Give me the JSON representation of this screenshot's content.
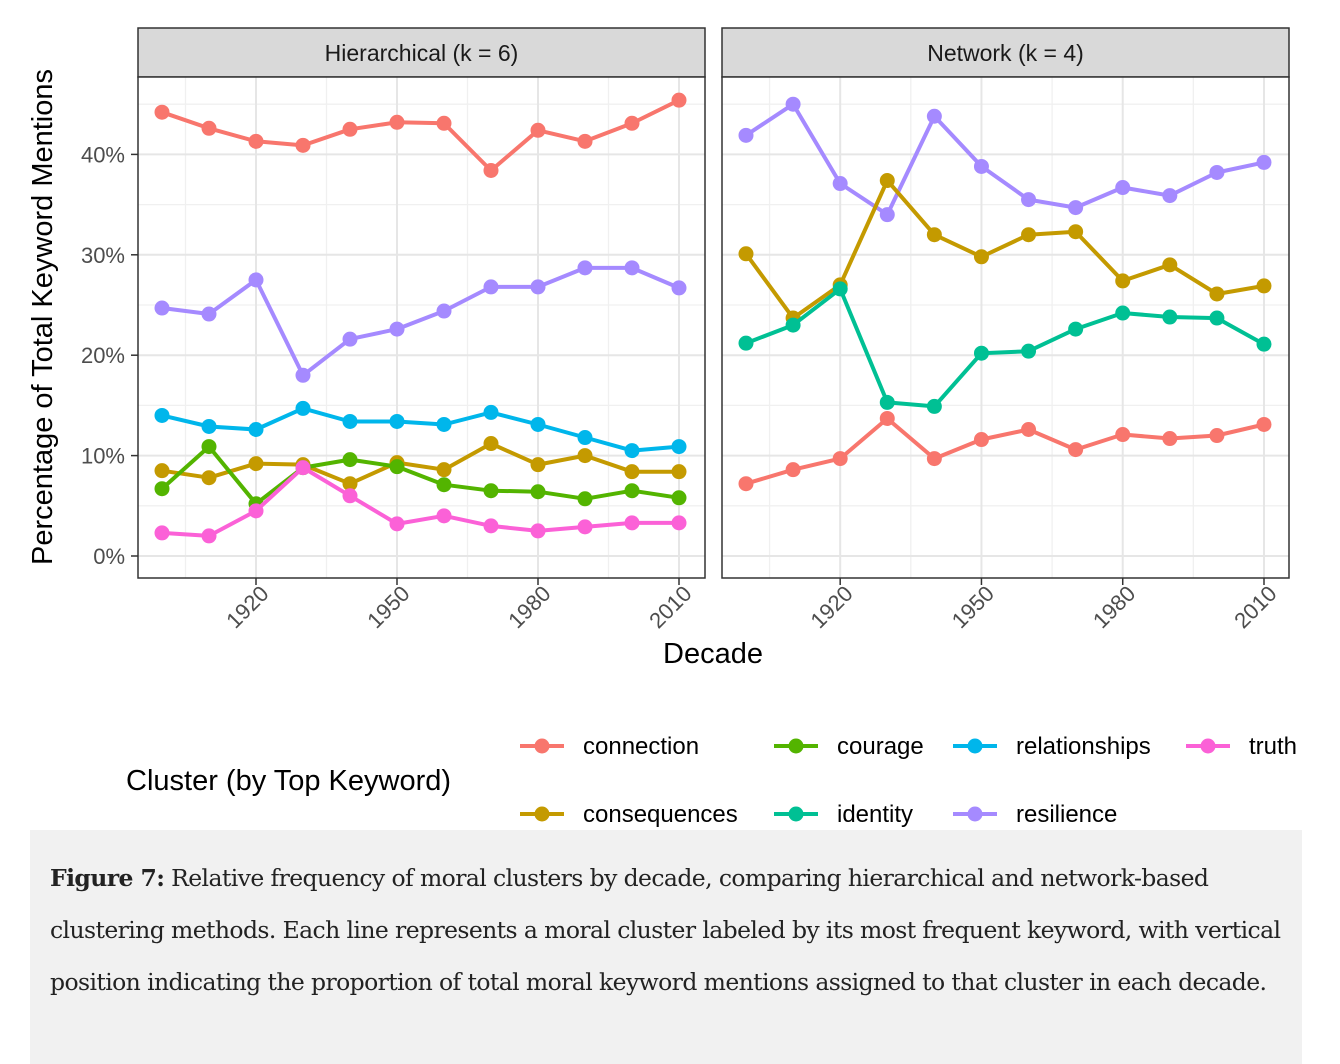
{
  "chart_data": {
    "type": "line",
    "ylabel": "Percentage of Total Keyword Mentions",
    "xlabel": "Decade",
    "y_ticks": [
      "0%",
      "10%",
      "20%",
      "30%",
      "40%"
    ],
    "ylim": [
      0,
      47
    ],
    "x": [
      1900,
      1910,
      1920,
      1930,
      1940,
      1950,
      1960,
      1970,
      1980,
      1990,
      2000,
      2010
    ],
    "x_ticks": [
      "1920",
      "1950",
      "1980",
      "2010"
    ],
    "grid": true,
    "legend": {
      "title": "Cluster (by Top Keyword)",
      "position": "bottom",
      "entries": [
        {
          "label": "connection",
          "color": "#F8766D"
        },
        {
          "label": "consequences",
          "color": "#C49A00"
        },
        {
          "label": "courage",
          "color": "#53B400"
        },
        {
          "label": "identity",
          "color": "#00C094"
        },
        {
          "label": "relationships",
          "color": "#00B6EB"
        },
        {
          "label": "resilience",
          "color": "#A58AFF"
        },
        {
          "label": "truth",
          "color": "#FB61D7"
        }
      ]
    },
    "panels": [
      {
        "title": "Hierarchical (k = 6)",
        "series": [
          {
            "name": "connection",
            "color": "#F8766D",
            "values": [
              44.2,
              42.6,
              41.3,
              40.9,
              42.5,
              43.2,
              43.1,
              38.4,
              42.4,
              41.3,
              43.1,
              45.4
            ]
          },
          {
            "name": "resilience",
            "color": "#A58AFF",
            "values": [
              24.7,
              24.1,
              27.5,
              18.0,
              21.6,
              22.6,
              24.4,
              26.8,
              26.8,
              28.7,
              28.7,
              26.7
            ]
          },
          {
            "name": "relationships",
            "color": "#00B6EB",
            "values": [
              14.0,
              12.9,
              12.6,
              14.7,
              13.4,
              13.4,
              13.1,
              14.3,
              13.1,
              11.8,
              10.5,
              10.9
            ]
          },
          {
            "name": "consequences",
            "color": "#C49A00",
            "values": [
              8.5,
              7.8,
              9.2,
              9.1,
              7.2,
              9.3,
              8.6,
              11.2,
              9.1,
              10.0,
              8.4,
              8.4
            ]
          },
          {
            "name": "courage",
            "color": "#53B400",
            "values": [
              6.7,
              10.9,
              5.2,
              8.8,
              9.6,
              8.9,
              7.1,
              6.5,
              6.4,
              5.7,
              6.5,
              5.8
            ]
          },
          {
            "name": "truth",
            "color": "#FB61D7",
            "values": [
              2.3,
              2.0,
              4.5,
              8.8,
              6.0,
              3.2,
              4.0,
              3.0,
              2.5,
              2.9,
              3.3,
              3.3
            ]
          }
        ]
      },
      {
        "title": "Network (k = 4)",
        "series": [
          {
            "name": "resilience",
            "color": "#A58AFF",
            "values": [
              41.9,
              45.0,
              37.1,
              34.0,
              43.8,
              38.8,
              35.5,
              34.7,
              36.7,
              35.9,
              38.2,
              39.2
            ]
          },
          {
            "name": "consequences",
            "color": "#C49A00",
            "values": [
              30.1,
              23.7,
              27.0,
              37.4,
              32.0,
              29.8,
              32.0,
              32.3,
              27.4,
              29.0,
              26.1,
              26.9
            ]
          },
          {
            "name": "identity",
            "color": "#00C094",
            "values": [
              21.2,
              23.0,
              26.6,
              15.3,
              14.9,
              20.2,
              20.4,
              22.6,
              24.2,
              23.8,
              23.7,
              21.1
            ]
          },
          {
            "name": "connection",
            "color": "#F8766D",
            "values": [
              7.2,
              8.6,
              9.7,
              13.7,
              9.7,
              11.6,
              12.6,
              10.6,
              12.1,
              11.7,
              12.0,
              13.1
            ]
          }
        ]
      }
    ]
  },
  "caption": {
    "label": "Figure 7:",
    "text": " Relative frequency of moral clusters by decade, comparing hierarchical and network-based clustering methods. Each line represents a moral cluster labeled by its most frequent keyword, with vertical position indicating the proportion of total moral keyword mentions assigned to that cluster in each decade."
  }
}
